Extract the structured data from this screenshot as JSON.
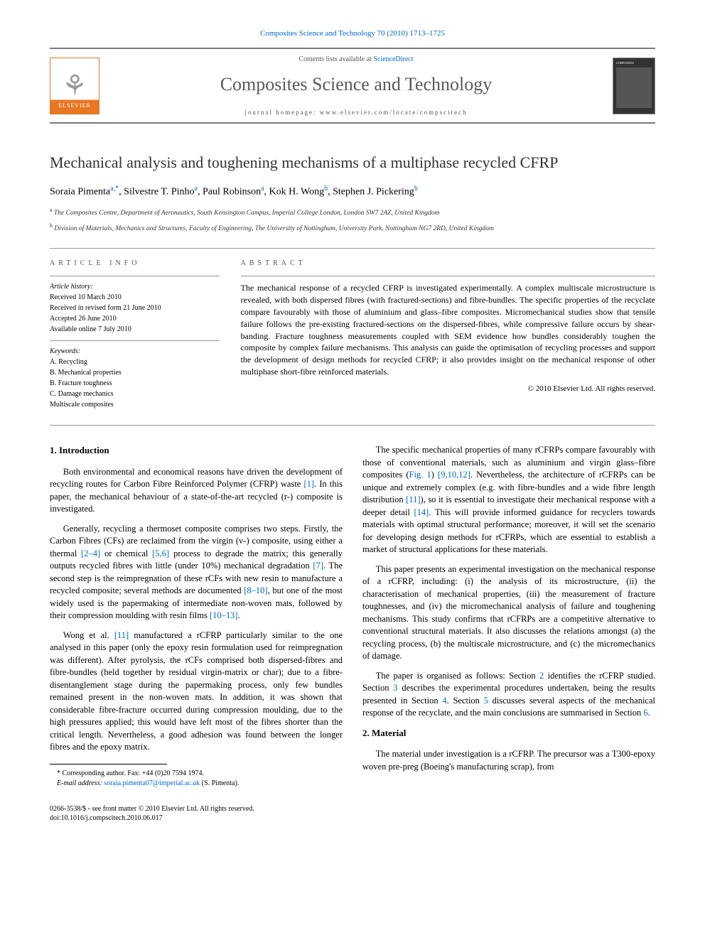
{
  "header": {
    "citation_link": "Composites Science and Technology 70 (2010) 1713–1725",
    "contents_prefix": "Contents lists available at ",
    "contents_link": "ScienceDirect",
    "journal_name": "Composites Science and Technology",
    "homepage_text": "journal homepage: www.elsevier.com/locate/compscitech",
    "publisher_label": "ELSEVIER"
  },
  "article": {
    "title": "Mechanical analysis and toughening mechanisms of a multiphase recycled CFRP",
    "authors_html_parts": {
      "a1": "Soraia Pimenta",
      "a1_sup": "a,*",
      "a2": "Silvestre T. Pinho",
      "a2_sup": "a",
      "a3": "Paul Robinson",
      "a3_sup": "a",
      "a4": "Kok H. Wong",
      "a4_sup": "b",
      "a5": "Stephen J. Pickering",
      "a5_sup": "b"
    },
    "affiliations": {
      "a": "The Composites Centre, Department of Aeronautics, South Kensington Campus, Imperial College London, London SW7 2AZ, United Kingdom",
      "b": "Division of Materials, Mechanics and Structures, Faculty of Engineering, The University of Nottingham, University Park, Nottingham NG7 2RD, United Kingdom"
    }
  },
  "info": {
    "heading": "article info",
    "history_label": "Article history:",
    "history": [
      "Received 10 March 2010",
      "Received in revised form 21 June 2010",
      "Accepted 26 June 2010",
      "Available online 7 July 2010"
    ],
    "keywords_label": "Keywords:",
    "keywords": [
      "A. Recycling",
      "B. Mechanical properties",
      "B. Fracture toughness",
      "C. Damage mechanics",
      "Multiscale composites"
    ]
  },
  "abstract": {
    "heading": "abstract",
    "text": "The mechanical response of a recycled CFRP is investigated experimentally. A complex multiscale microstructure is revealed, with both dispersed fibres (with fractured-sections) and fibre-bundles. The specific properties of the recyclate compare favourably with those of aluminium and glass–fibre composites. Micromechanical studies show that tensile failure follows the pre-existing fractured-sections on the dispersed-fibres, while compressive failure occurs by shear-banding. Fracture toughness measurements coupled with SEM evidence how bundles considerably toughen the composite by complex failure mechanisms. This analysis can guide the optimisation of recycling processes and support the development of design methods for recycled CFRP; it also provides insight on the mechanical response of other multiphase short-fibre reinforced materials.",
    "copyright": "© 2010 Elsevier Ltd. All rights reserved."
  },
  "body": {
    "intro_heading": "1. Introduction",
    "material_heading": "2. Material",
    "col1_p1_a": "Both environmental and economical reasons have driven the development of recycling routes for Carbon Fibre Reinforced Polymer (CFRP) waste ",
    "col1_p1_ref1": "[1]",
    "col1_p1_b": ". In this paper, the mechanical behaviour of a state-of-the-art recycled (r-) composite is investigated.",
    "col1_p2_a": "Generally, recycling a thermoset composite comprises two steps. Firstly, the Carbon Fibres (CFs) are reclaimed from the virgin (v-) composite, using either a thermal ",
    "col1_p2_ref1": "[2–4]",
    "col1_p2_b": " or chemical ",
    "col1_p2_ref2": "[5,6]",
    "col1_p2_c": " process to degrade the matrix; this generally outputs recycled fibres with little (under 10%) mechanical degradation ",
    "col1_p2_ref3": "[7]",
    "col1_p2_d": ". The second step is the reimpregnation of these rCFs with new resin to manufacture a recycled composite; several methods are documented ",
    "col1_p2_ref4": "[8–10]",
    "col1_p2_e": ", but one of the most widely used is the papermaking of intermediate non-woven mats, followed by their compression moulding with resin films ",
    "col1_p2_ref5": "[10–13]",
    "col1_p2_f": ".",
    "col1_p3_a": "Wong et al. ",
    "col1_p3_ref1": "[11]",
    "col1_p3_b": " manufactured a rCFRP particularly similar to the one analysed in this paper (only the epoxy resin formulation used for reimpregnation was different). After pyrolysis, the rCFs comprised both dispersed-fibres and fibre-bundles (held together by residual virgin-matrix or char); due to a fibre-disentanglement stage during the papermaking process, only few bundles remained present in the non-woven mats. In addition, it was shown that considerable fibre-fracture occurred during compression moulding, due to the high pressures applied; this would have left most of the fibres shorter than the critical length. Nevertheless, a good adhesion was found between the longer fibres and the epoxy matrix.",
    "col2_p1_a": "The specific mechanical properties of many rCFRPs compare favourably with those of conventional materials, such as aluminium and virgin glass–fibre composites (",
    "col2_p1_fig": "Fig. 1",
    "col2_p1_b": ") ",
    "col2_p1_ref1": "[9,10,12]",
    "col2_p1_c": ". Nevertheless, the architecture of rCFRPs can be unique and extremely complex (e.g. with fibre-bundles and a wide fibre length distribution ",
    "col2_p1_ref2": "[11]",
    "col2_p1_d": "), so it is essential to investigate their mechanical response with a deeper detail ",
    "col2_p1_ref3": "[14]",
    "col2_p1_e": ". This will provide informed guidance for recyclers towards materials with optimal structural performance; moreover, it will set the scenario for developing design methods for rCFRPs, which are essential to establish a market of structural applications for these materials.",
    "col2_p2": "This paper presents an experimental investigation on the mechanical response of a rCFRP, including: (i) the analysis of its microstructure, (ii) the characterisation of mechanical properties, (iii) the measurement of fracture toughnesses, and (iv) the micromechanical analysis of failure and toughening mechanisms. This study confirms that rCFRPs are a competitive alternative to conventional structural materials. It also discusses the relations amongst (a) the recycling process, (b) the multiscale microstructure, and (c) the micromechanics of damage.",
    "col2_p3_a": "The paper is organised as follows: Section ",
    "col2_p3_l1": "2",
    "col2_p3_b": " identifies the rCFRP studied. Section ",
    "col2_p3_l2": "3",
    "col2_p3_c": " describes the experimental procedures undertaken, being the results presented in Section ",
    "col2_p3_l3": "4",
    "col2_p3_d": ". Section ",
    "col2_p3_l4": "5",
    "col2_p3_e": " discusses several aspects of the mechanical response of the recyclate, and the main conclusions are summarised in Section ",
    "col2_p3_l5": "6",
    "col2_p3_f": ".",
    "col2_p4": "The material under investigation is a rCFRP. The precursor was a T300-epoxy woven pre-preg (Boeing's manufacturing scrap), from"
  },
  "footnote": {
    "corresponding": "* Corresponding author. Fax: +44 (0)20 7594 1974.",
    "email_label": "E-mail address: ",
    "email": "soraia.pimenta07@imperial.ac.uk",
    "email_suffix": " (S. Pimenta)."
  },
  "frontmatter": {
    "line1": "0266-3538/$ - see front matter © 2010 Elsevier Ltd. All rights reserved.",
    "line2": "doi:10.1016/j.compscitech.2010.06.017"
  },
  "colors": {
    "link": "#0066cc",
    "rule": "#7a7a7a",
    "elsevier_orange": "#e87722",
    "text": "#000000",
    "muted": "#555555"
  },
  "typography": {
    "body_font": "Times New Roman",
    "title_fontsize_pt": 22,
    "journal_name_fontsize_pt": 26,
    "body_fontsize_pt": 12.5,
    "info_fontsize_pt": 10
  }
}
